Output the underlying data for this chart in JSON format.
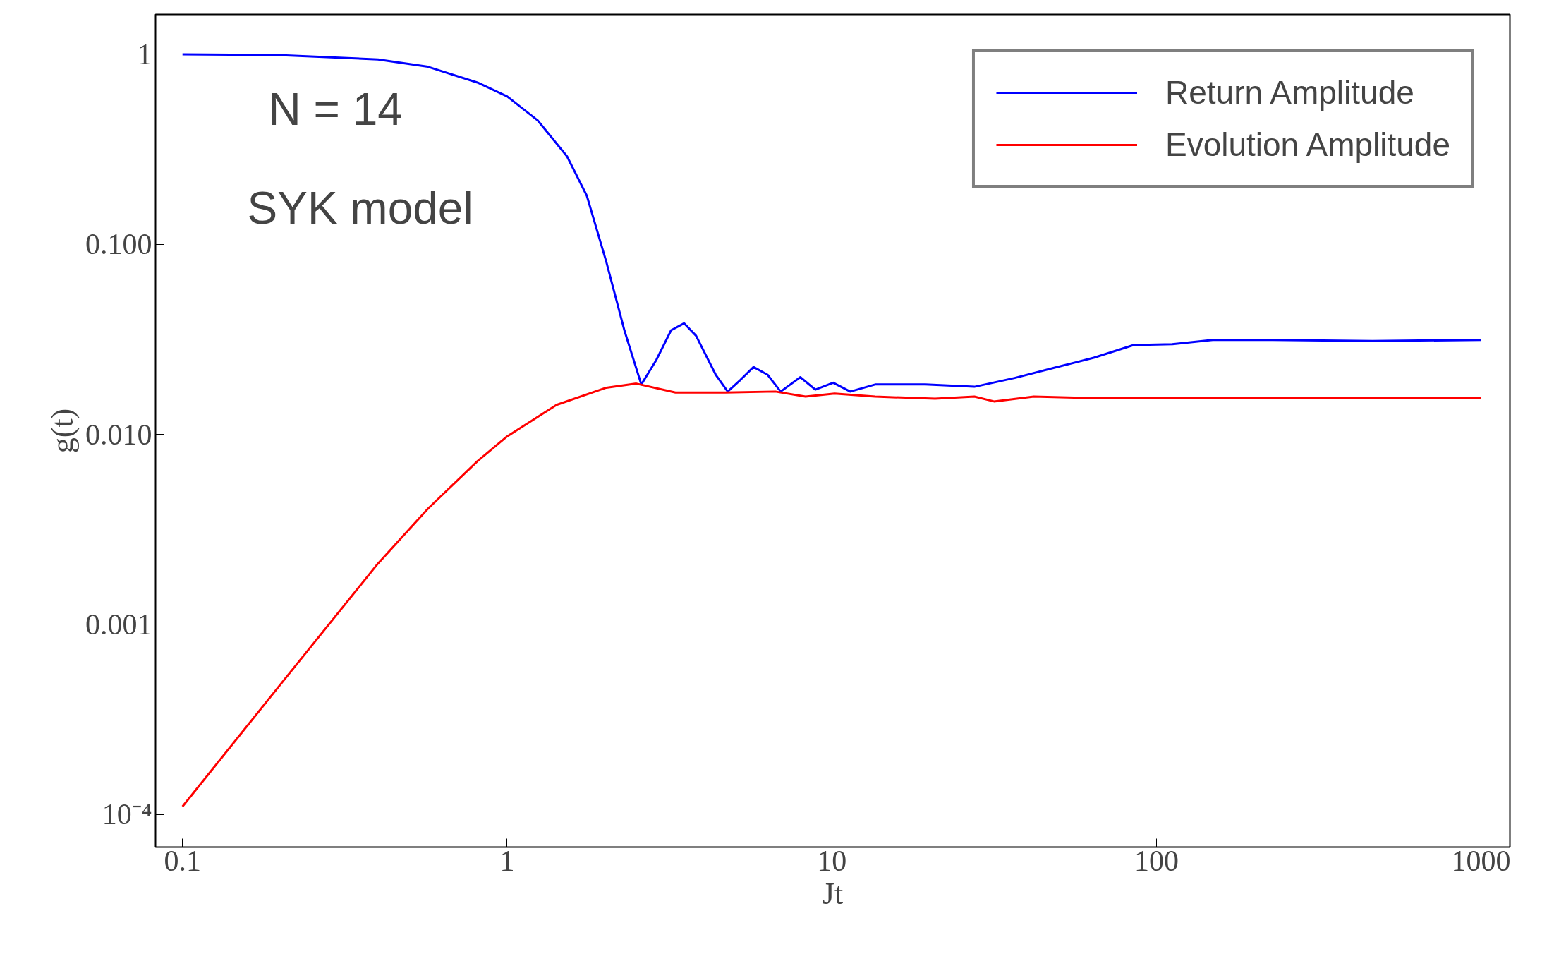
{
  "chart_data": {
    "type": "line",
    "xlabel": "Jt",
    "ylabel": "g(t)",
    "log": "xy",
    "grid": false,
    "legend": "top right",
    "xlim": [
      0.0826,
      1227
    ],
    "ylim": [
      6.73e-05,
      1.62
    ],
    "xticks": [
      0.1,
      1,
      10,
      100,
      1000
    ],
    "yticks": [
      {
        "value": 1,
        "label": "1"
      },
      {
        "value": 0.1,
        "label": "0.100"
      },
      {
        "value": 0.01,
        "label": "0.010"
      },
      {
        "value": 0.001,
        "label": "0.001"
      },
      {
        "value": 0.0001,
        "label": "10⁻⁴"
      }
    ],
    "annotations": [
      "N = 14",
      "SYK model"
    ],
    "series": [
      {
        "name": "Return Amplitude",
        "color": "#0000ff",
        "x": [
          0.1,
          0.197,
          0.4,
          0.57,
          0.81,
          1.0,
          1.24,
          1.53,
          1.76,
          2.02,
          2.3,
          2.59,
          2.88,
          3.2,
          3.51,
          3.82,
          4.39,
          4.78,
          5.24,
          5.74,
          6.34,
          6.96,
          8.0,
          8.9,
          10.1,
          11.4,
          13.6,
          19.4,
          27.5,
          36.6,
          48.4,
          64.1,
          85,
          112,
          149,
          228,
          463,
          1000
        ],
        "values": [
          1,
          0.99,
          0.94,
          0.86,
          0.71,
          0.6,
          0.45,
          0.29,
          0.18,
          0.081,
          0.035,
          0.0183,
          0.0246,
          0.0353,
          0.0384,
          0.033,
          0.0206,
          0.0168,
          0.0194,
          0.0226,
          0.0206,
          0.0168,
          0.02,
          0.0172,
          0.0187,
          0.0168,
          0.0183,
          0.0183,
          0.0178,
          0.0198,
          0.0224,
          0.0253,
          0.0295,
          0.0298,
          0.0314,
          0.0314,
          0.031,
          0.0314
        ]
      },
      {
        "name": "Evolution Amplitude",
        "color": "#ff0000",
        "x": [
          0.1,
          0.197,
          0.4,
          0.57,
          0.81,
          1.0,
          1.42,
          2.02,
          2.5,
          3.3,
          4.7,
          6.7,
          8.3,
          10.2,
          13.6,
          20.8,
          27.5,
          31.6,
          41.9,
          55.8,
          112,
          228,
          463,
          1000
        ],
        "values": [
          0.00011,
          0.000466,
          0.00209,
          0.00406,
          0.00722,
          0.00976,
          0.0143,
          0.0176,
          0.0185,
          0.0166,
          0.0166,
          0.0168,
          0.0158,
          0.0164,
          0.0158,
          0.0154,
          0.0158,
          0.0149,
          0.0158,
          0.0156,
          0.0156,
          0.0156,
          0.0156,
          0.0156
        ]
      }
    ]
  }
}
